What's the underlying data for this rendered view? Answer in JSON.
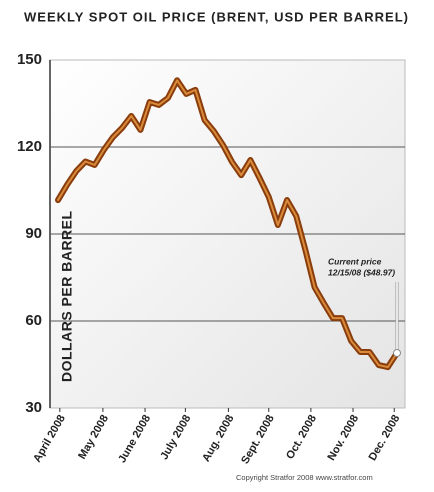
{
  "chart_data": {
    "type": "line",
    "title": "WEEKLY SPOT OIL PRICE (BRENT, USD PER BARREL)",
    "y_label": "DOLLARS PER BARREL",
    "series": [
      {
        "name": "Brent",
        "color": "#8a3d0c",
        "values": [
          101.7,
          107,
          111.7,
          115,
          113.8,
          119,
          123.4,
          126.6,
          130.7,
          125.9,
          135.5,
          134.5,
          136.9,
          143,
          138.3,
          139.7,
          129.3,
          125.5,
          120.7,
          114.8,
          110.3,
          115.5,
          109.3,
          102.8,
          93.1,
          101.7,
          96.2,
          84.5,
          71.7,
          66.2,
          61,
          61,
          53.1,
          49.3,
          49.3,
          44.8,
          44.1,
          48.97
        ]
      }
    ],
    "xlim": [
      0,
      37
    ],
    "xticks": [
      {
        "value": 0.2,
        "label": "April 2008"
      },
      {
        "value": 4.9,
        "label": "May 2008"
      },
      {
        "value": 9.5,
        "label": "June 2008"
      },
      {
        "value": 13.9,
        "label": "July 2008"
      },
      {
        "value": 18.6,
        "label": "Aug. 2008"
      },
      {
        "value": 23,
        "label": "Sept. 2008"
      },
      {
        "value": 27.6,
        "label": "Oct. 2008"
      },
      {
        "value": 32.2,
        "label": "Nov. 2008"
      },
      {
        "value": 36.7,
        "label": "Dec. 2008"
      }
    ],
    "ylim": [
      30,
      150
    ],
    "yticks": [
      30,
      60,
      90,
      120,
      150
    ],
    "grid": true,
    "annotation": {
      "lines": [
        "Current price",
        "12/15/08 ($48.97)"
      ]
    },
    "footer": "Copyright Stratfor 2008    www.stratfor.com"
  }
}
